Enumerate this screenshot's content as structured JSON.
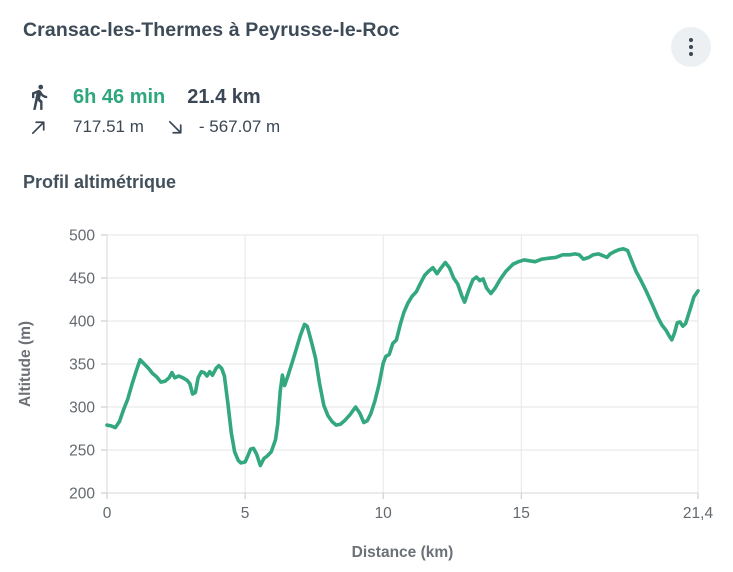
{
  "header": {
    "title": "Cransac-les-Thermes à Peyrusse-le-Roc",
    "menu_icon": "vertical-ellipsis-icon"
  },
  "stats": {
    "walker_icon": "walking-person-icon",
    "duration": "6h 46 min",
    "distance": "21.4 km",
    "ascent_icon": "arrow-up-right-icon",
    "ascent": "717.51 m",
    "descent_icon": "arrow-down-right-icon",
    "descent": "- 567.07 m"
  },
  "section": {
    "title": "Profil altimétrique"
  },
  "colors": {
    "accent_green": "#2ea77c",
    "line_green": "#33a77e",
    "dark_text": "#3b4754",
    "axis_text": "#63696e",
    "grid": "#e6e6e6"
  },
  "chart_data": {
    "type": "line",
    "title": "Profil altimétrique",
    "xlabel": "Distance (km)",
    "ylabel": "Altitude (m)",
    "xlim": [
      0,
      21.4
    ],
    "ylim": [
      200,
      500
    ],
    "grid": true,
    "legend": false,
    "line_color": "#33a77e",
    "x_ticks": [
      {
        "v": 0,
        "label": "0"
      },
      {
        "v": 5,
        "label": "5"
      },
      {
        "v": 10,
        "label": "10"
      },
      {
        "v": 15,
        "label": "15"
      },
      {
        "v": 21.4,
        "label": "21,4"
      }
    ],
    "y_ticks": [
      200,
      250,
      300,
      350,
      400,
      450,
      500
    ],
    "points": [
      [
        0,
        279
      ],
      [
        0.15,
        278
      ],
      [
        0.3,
        276
      ],
      [
        0.45,
        283
      ],
      [
        0.6,
        297
      ],
      [
        0.75,
        309
      ],
      [
        0.9,
        326
      ],
      [
        1.05,
        341
      ],
      [
        1.2,
        355
      ],
      [
        1.35,
        350
      ],
      [
        1.5,
        345
      ],
      [
        1.65,
        339
      ],
      [
        1.8,
        335
      ],
      [
        1.95,
        329
      ],
      [
        2.1,
        330
      ],
      [
        2.25,
        334
      ],
      [
        2.35,
        340
      ],
      [
        2.45,
        334
      ],
      [
        2.6,
        336
      ],
      [
        2.75,
        334
      ],
      [
        2.9,
        331
      ],
      [
        3.0,
        327
      ],
      [
        3.1,
        315
      ],
      [
        3.2,
        317
      ],
      [
        3.3,
        334
      ],
      [
        3.42,
        341
      ],
      [
        3.52,
        340
      ],
      [
        3.62,
        336
      ],
      [
        3.72,
        341
      ],
      [
        3.82,
        337
      ],
      [
        3.95,
        345
      ],
      [
        4.05,
        348
      ],
      [
        4.15,
        345
      ],
      [
        4.25,
        336
      ],
      [
        4.38,
        303
      ],
      [
        4.5,
        270
      ],
      [
        4.62,
        248
      ],
      [
        4.75,
        238
      ],
      [
        4.85,
        235
      ],
      [
        5.0,
        236
      ],
      [
        5.1,
        243
      ],
      [
        5.2,
        251
      ],
      [
        5.3,
        252
      ],
      [
        5.42,
        245
      ],
      [
        5.55,
        232
      ],
      [
        5.68,
        240
      ],
      [
        5.8,
        243
      ],
      [
        5.95,
        248
      ],
      [
        6.1,
        262
      ],
      [
        6.18,
        280
      ],
      [
        6.27,
        318
      ],
      [
        6.35,
        337
      ],
      [
        6.43,
        325
      ],
      [
        6.55,
        336
      ],
      [
        6.7,
        351
      ],
      [
        6.85,
        367
      ],
      [
        7.0,
        383
      ],
      [
        7.15,
        396
      ],
      [
        7.25,
        394
      ],
      [
        7.4,
        376
      ],
      [
        7.55,
        357
      ],
      [
        7.7,
        327
      ],
      [
        7.85,
        302
      ],
      [
        8.0,
        290
      ],
      [
        8.15,
        283
      ],
      [
        8.3,
        279
      ],
      [
        8.45,
        280
      ],
      [
        8.6,
        284
      ],
      [
        8.8,
        291
      ],
      [
        9.0,
        300
      ],
      [
        9.15,
        293
      ],
      [
        9.3,
        282
      ],
      [
        9.42,
        284
      ],
      [
        9.55,
        292
      ],
      [
        9.7,
        307
      ],
      [
        9.85,
        326
      ],
      [
        10.0,
        351
      ],
      [
        10.1,
        359
      ],
      [
        10.22,
        361
      ],
      [
        10.35,
        374
      ],
      [
        10.48,
        378
      ],
      [
        10.62,
        396
      ],
      [
        10.75,
        410
      ],
      [
        10.9,
        421
      ],
      [
        11.05,
        429
      ],
      [
        11.2,
        434
      ],
      [
        11.35,
        444
      ],
      [
        11.5,
        453
      ],
      [
        11.65,
        458
      ],
      [
        11.8,
        462
      ],
      [
        11.95,
        455
      ],
      [
        12.1,
        462
      ],
      [
        12.25,
        468
      ],
      [
        12.4,
        462
      ],
      [
        12.55,
        450
      ],
      [
        12.7,
        443
      ],
      [
        12.85,
        429
      ],
      [
        12.95,
        422
      ],
      [
        13.1,
        436
      ],
      [
        13.25,
        448
      ],
      [
        13.38,
        451
      ],
      [
        13.5,
        447
      ],
      [
        13.62,
        449
      ],
      [
        13.75,
        438
      ],
      [
        13.9,
        432
      ],
      [
        14.05,
        438
      ],
      [
        14.25,
        449
      ],
      [
        14.45,
        458
      ],
      [
        14.7,
        466
      ],
      [
        14.9,
        469
      ],
      [
        15.1,
        471
      ],
      [
        15.3,
        470
      ],
      [
        15.5,
        469
      ],
      [
        15.75,
        472
      ],
      [
        16.0,
        473
      ],
      [
        16.25,
        474
      ],
      [
        16.5,
        477
      ],
      [
        16.75,
        477
      ],
      [
        16.95,
        478
      ],
      [
        17.1,
        477
      ],
      [
        17.25,
        472
      ],
      [
        17.45,
        474
      ],
      [
        17.6,
        477
      ],
      [
        17.8,
        478
      ],
      [
        17.95,
        476
      ],
      [
        18.1,
        474
      ],
      [
        18.22,
        478
      ],
      [
        18.4,
        481
      ],
      [
        18.55,
        483
      ],
      [
        18.7,
        484
      ],
      [
        18.85,
        482
      ],
      [
        19.0,
        470
      ],
      [
        19.15,
        458
      ],
      [
        19.35,
        446
      ],
      [
        19.55,
        433
      ],
      [
        19.75,
        419
      ],
      [
        19.95,
        404
      ],
      [
        20.1,
        395
      ],
      [
        20.25,
        389
      ],
      [
        20.35,
        383
      ],
      [
        20.45,
        378
      ],
      [
        20.55,
        386
      ],
      [
        20.65,
        398
      ],
      [
        20.75,
        399
      ],
      [
        20.85,
        394
      ],
      [
        20.95,
        397
      ],
      [
        21.1,
        412
      ],
      [
        21.25,
        428
      ],
      [
        21.4,
        435
      ]
    ]
  }
}
